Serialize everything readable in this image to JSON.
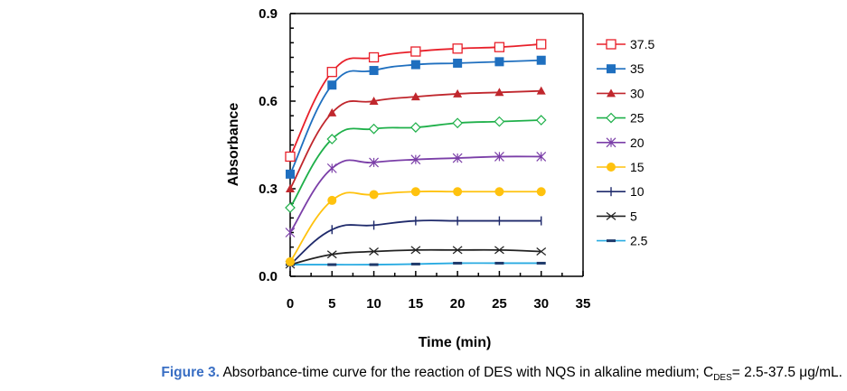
{
  "chart_data": {
    "type": "line",
    "title": "",
    "xlabel": "Time (min)",
    "ylabel": "Absorbance",
    "xlim": [
      0,
      35
    ],
    "ylim": [
      0,
      0.9
    ],
    "xticks": [
      "0",
      "5",
      "10",
      "15",
      "20",
      "25",
      "30",
      "35"
    ],
    "yticks": [
      "0.0",
      "0.3",
      "0.6",
      "0.9"
    ],
    "x": [
      0,
      5,
      10,
      15,
      20,
      25,
      30
    ],
    "legend_position": "right",
    "series": [
      {
        "name": "37.5",
        "color": "#e8202a",
        "marker": "square-open",
        "values": [
          0.41,
          0.7,
          0.75,
          0.77,
          0.78,
          0.785,
          0.795
        ]
      },
      {
        "name": "35",
        "color": "#1f6fbf",
        "marker": "square-filled",
        "values": [
          0.35,
          0.655,
          0.705,
          0.725,
          0.73,
          0.735,
          0.74
        ]
      },
      {
        "name": "30",
        "color": "#c0272d",
        "marker": "triangle-filled",
        "values": [
          0.3,
          0.56,
          0.6,
          0.615,
          0.625,
          0.63,
          0.635
        ]
      },
      {
        "name": "25",
        "color": "#1fb04a",
        "marker": "diamond-open",
        "values": [
          0.235,
          0.47,
          0.505,
          0.51,
          0.525,
          0.53,
          0.535
        ]
      },
      {
        "name": "20",
        "color": "#7b3fa8",
        "marker": "asterisk",
        "values": [
          0.15,
          0.37,
          0.39,
          0.4,
          0.405,
          0.41,
          0.41
        ]
      },
      {
        "name": "15",
        "color": "#ffc20e",
        "marker": "circle-filled",
        "values": [
          0.05,
          0.26,
          0.28,
          0.29,
          0.29,
          0.29,
          0.29
        ]
      },
      {
        "name": "10",
        "color": "#1f2a6b",
        "marker": "plus",
        "values": [
          0.04,
          0.16,
          0.175,
          0.19,
          0.19,
          0.19,
          0.19
        ]
      },
      {
        "name": "5",
        "color": "#222222",
        "marker": "x",
        "values": [
          0.04,
          0.075,
          0.085,
          0.09,
          0.09,
          0.09,
          0.085
        ]
      },
      {
        "name": "2.5",
        "color": "#29abe2",
        "marker": "dash",
        "values": [
          0.04,
          0.04,
          0.04,
          0.042,
          0.045,
          0.045,
          0.045
        ]
      }
    ]
  },
  "caption": {
    "label": "Figure 3.",
    "text": " Absorbance-time curve for the reaction of DES with NQS in alkaline medium; C",
    "subscript": "DES",
    "suffix": "= 2.5-37.5 μg/mL."
  }
}
